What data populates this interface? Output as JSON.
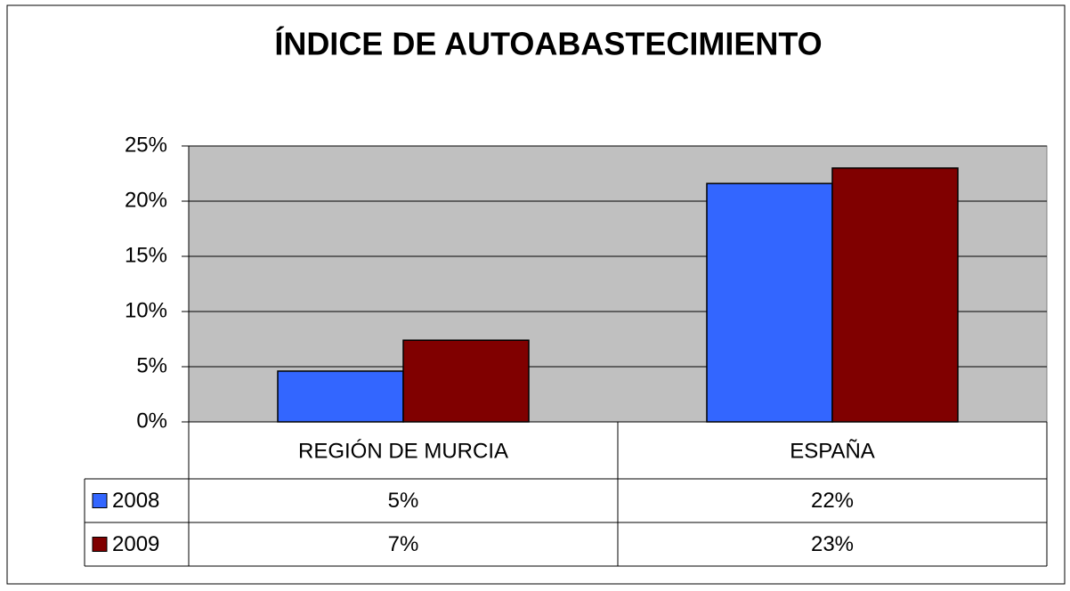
{
  "chart_data": {
    "type": "bar",
    "title": "ÍNDICE DE AUTOABASTECIMIENTO",
    "categories": [
      "REGIÓN DE MURCIA",
      "ESPAÑA"
    ],
    "series": [
      {
        "name": "2008",
        "color": "#3366ff",
        "values": [
          4.6,
          21.6
        ],
        "value_labels": [
          "5%",
          "22%"
        ]
      },
      {
        "name": "2009",
        "color": "#800000",
        "values": [
          7.4,
          23.0
        ],
        "value_labels": [
          "7%",
          "23%"
        ]
      }
    ],
    "ylim": [
      0,
      25
    ],
    "yticks": [
      {
        "value": 0,
        "label": "0%"
      },
      {
        "value": 5,
        "label": "5%"
      },
      {
        "value": 10,
        "label": "10%"
      },
      {
        "value": 15,
        "label": "15%"
      },
      {
        "value": 20,
        "label": "20%"
      },
      {
        "value": 25,
        "label": "25%"
      }
    ],
    "grid": true,
    "plot_background": "#c0c0c0"
  }
}
